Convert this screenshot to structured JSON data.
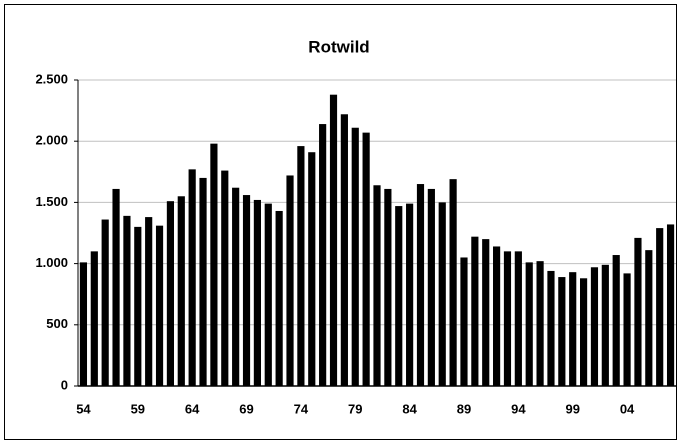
{
  "chart_data": {
    "type": "bar",
    "title": "Rotwild",
    "categories": [
      "54",
      null,
      null,
      null,
      null,
      "59",
      null,
      null,
      null,
      null,
      "64",
      null,
      null,
      null,
      null,
      "69",
      null,
      null,
      null,
      null,
      "74",
      null,
      null,
      null,
      null,
      "79",
      null,
      null,
      null,
      null,
      "84",
      null,
      null,
      null,
      null,
      "89",
      null,
      null,
      null,
      null,
      "94",
      null,
      null,
      null,
      null,
      "99",
      null,
      null,
      null,
      null,
      "04",
      null,
      null,
      null,
      null
    ],
    "values": [
      1010,
      1100,
      1360,
      1610,
      1390,
      1300,
      1380,
      1310,
      1510,
      1550,
      1770,
      1700,
      1980,
      1760,
      1620,
      1560,
      1520,
      1490,
      1430,
      1720,
      1960,
      1910,
      2140,
      2380,
      2220,
      2110,
      2070,
      1640,
      1610,
      1470,
      1490,
      1650,
      1610,
      1500,
      1690,
      1050,
      1220,
      1200,
      1140,
      1100,
      1100,
      1010,
      1020,
      940,
      890,
      930,
      880,
      970,
      990,
      1070,
      920,
      1210,
      1110,
      1290,
      1320
    ],
    "color": "#000000",
    "ylim": [
      0,
      2500
    ],
    "yticks": [
      0,
      500,
      {
        "value": 1000,
        "label": "1.000"
      },
      {
        "value": 1500,
        "label": "1.500"
      },
      {
        "value": 2000,
        "label": "2.000"
      },
      {
        "value": 2500,
        "label": "2.500"
      }
    ],
    "grid": true
  }
}
